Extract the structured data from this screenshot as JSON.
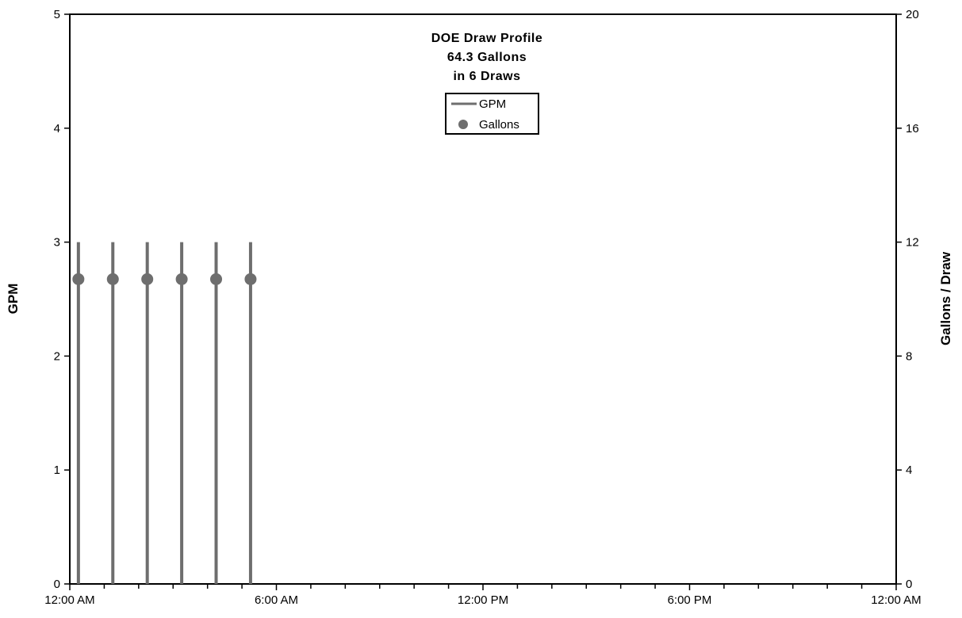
{
  "chart_data": {
    "type": "line",
    "title": "DOE Draw Profile",
    "subtitle_lines": [
      "64.3 Gallons",
      "in 6 Draws"
    ],
    "xlabel": "",
    "ylabel": "GPM",
    "y2label": "Gallons / Draw",
    "xlim": [
      0,
      24
    ],
    "ylim": [
      0,
      5
    ],
    "y2lim": [
      0,
      20
    ],
    "x_tick_labels": [
      "12:00 AM",
      "6:00 AM",
      "12:00 PM",
      "6:00 PM",
      "12:00 AM"
    ],
    "x_tick_hours": [
      0,
      6,
      12,
      18,
      24
    ],
    "x_minor_tick_hours": [
      1,
      2,
      3,
      4,
      5,
      7,
      8,
      9,
      10,
      11,
      13,
      14,
      15,
      16,
      17,
      19,
      20,
      21,
      22,
      23
    ],
    "y_ticks": [
      0,
      1,
      2,
      3,
      4,
      5
    ],
    "y2_ticks": [
      0,
      4,
      8,
      12,
      16,
      20
    ],
    "grid": false,
    "legend_position": "top-center",
    "series": [
      {
        "name": "GPM",
        "axis": "left",
        "style": "impulse-line",
        "color": "#6e6e6e",
        "x_hours": [
          0.25,
          1.25,
          2.25,
          3.25,
          4.25,
          5.25
        ],
        "values": [
          3.0,
          3.0,
          3.0,
          3.0,
          3.0,
          3.0
        ]
      },
      {
        "name": "Gallons",
        "axis": "right",
        "style": "marker",
        "color": "#6e6e6e",
        "x_hours": [
          0.25,
          1.25,
          2.25,
          3.25,
          4.25,
          5.25
        ],
        "values": [
          10.7,
          10.7,
          10.7,
          10.7,
          10.7,
          10.7
        ]
      }
    ]
  }
}
